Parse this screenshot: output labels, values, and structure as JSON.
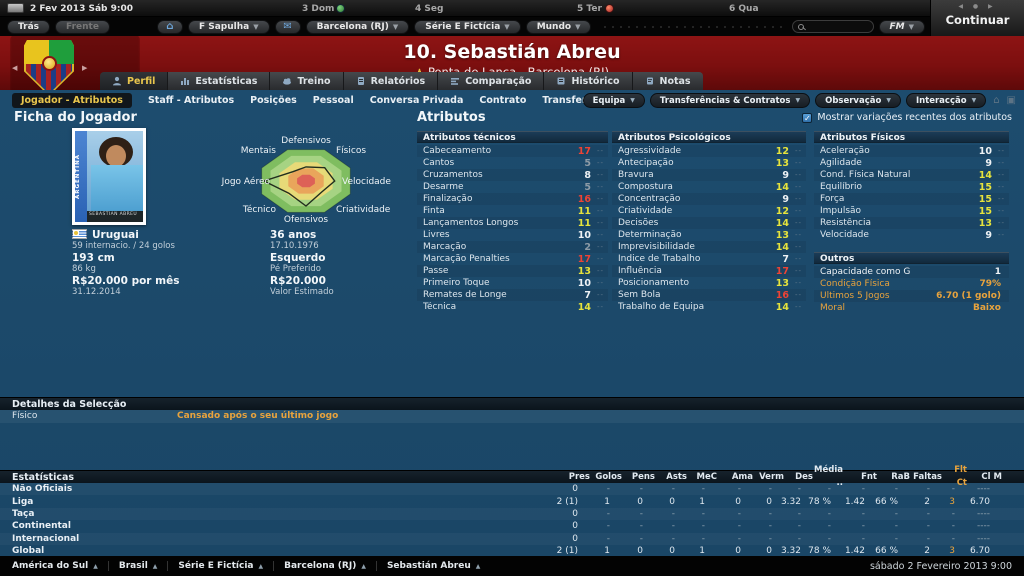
{
  "colors": {
    "attr_red": "#ee4334",
    "attr_yellow": "#e6e33c",
    "attr_white": "#eef2f5",
    "attr_gray": "#8d9ba6",
    "accent_orange": "#e8a33d",
    "tab_selected": "#e9c64d"
  },
  "top": {
    "date": "2 Fev 2013 Sáb 9:00",
    "days": [
      "3 Dom",
      "4 Seg",
      "5 Ter",
      "6 Qua"
    ],
    "continue_label": "Continuar"
  },
  "toolbar": {
    "back": "Trás",
    "forward": "Frente",
    "manager": "F Sapulha",
    "club": "Barcelona (RJ)",
    "competition": "Série E Fictícia",
    "world": "Mundo",
    "fm": "FM"
  },
  "header": {
    "title": "10. Sebastián Abreu",
    "subtitle": "Ponta de Lança - Barcelona (RJ)"
  },
  "tabs": [
    {
      "label": "Perfil",
      "selected": true,
      "icon": "person-icon"
    },
    {
      "label": "Estatísticas",
      "selected": false,
      "icon": "stats-icon"
    },
    {
      "label": "Treino",
      "selected": false,
      "icon": "training-icon"
    },
    {
      "label": "Relatórios",
      "selected": false,
      "icon": "report-icon"
    },
    {
      "label": "Comparação",
      "selected": false,
      "icon": "comparison-icon"
    },
    {
      "label": "Histórico",
      "selected": false,
      "icon": "history-icon"
    },
    {
      "label": "Notas",
      "selected": false,
      "icon": "notes-icon"
    }
  ],
  "subtabs": [
    {
      "label": "Jogador - Atributos",
      "selected": true
    },
    {
      "label": "Staff - Atributos",
      "selected": false
    },
    {
      "label": "Posições",
      "selected": false
    },
    {
      "label": "Pessoal",
      "selected": false
    },
    {
      "label": "Conversa Privada",
      "selected": false
    },
    {
      "label": "Contrato",
      "selected": false
    },
    {
      "label": "Transferência",
      "selected": false
    }
  ],
  "action_menus": [
    "Equipa",
    "Transferências & Contratos",
    "Observação",
    "Interacção"
  ],
  "show_variations": "Mostrar variações recentes dos atributos",
  "player": {
    "section_title": "Ficha do Jogador",
    "card_country": "ARGENTINA",
    "card_name": "SEBASTIAN ABREU",
    "nationality": "Uruguai",
    "caps": "59 internacio. / 24 golos",
    "height": "193 cm",
    "weight": "86 kg",
    "wage": "R$20.000 por mês",
    "contract_end": "31.12.2014",
    "age": "36 anos",
    "birth": "17.10.1976",
    "foot": "Esquerdo",
    "foot_label": "Pé Preferido",
    "value": "R$20.000",
    "value_label": "Valor Estimado"
  },
  "radar": {
    "labels": [
      "Defensivos",
      "Físicos",
      "Velocidade",
      "Criatividade",
      "Ofensivos",
      "Técnico",
      "Jogo Aéreo",
      "Mentais"
    ],
    "values": [
      0.45,
      0.6,
      0.65,
      0.5,
      0.8,
      0.55,
      0.95,
      0.42
    ]
  },
  "attributes": {
    "section_title": "Atributos",
    "groups": [
      {
        "title": "Atributos técnicos",
        "rows": [
          [
            "Cabeceamento",
            17
          ],
          [
            "Cantos",
            5
          ],
          [
            "Cruzamentos",
            8
          ],
          [
            "Desarme",
            5
          ],
          [
            "Finalização",
            16
          ],
          [
            "Finta",
            11
          ],
          [
            "Lançamentos Longos",
            11
          ],
          [
            "Livres",
            10
          ],
          [
            "Marcação",
            2
          ],
          [
            "Marcação Penalties",
            17
          ],
          [
            "Passe",
            13
          ],
          [
            "Primeiro Toque",
            10
          ],
          [
            "Remates de Longe",
            7
          ],
          [
            "Técnica",
            14
          ]
        ]
      },
      {
        "title": "Atributos Psicológicos",
        "rows": [
          [
            "Agressividade",
            12
          ],
          [
            "Antecipação",
            13
          ],
          [
            "Bravura",
            9
          ],
          [
            "Compostura",
            14
          ],
          [
            "Concentração",
            9
          ],
          [
            "Criatividade",
            12
          ],
          [
            "Decisões",
            14
          ],
          [
            "Determinação",
            13
          ],
          [
            "Imprevisibilidade",
            14
          ],
          [
            "Índice de Trabalho",
            7
          ],
          [
            "Influência",
            17
          ],
          [
            "Posicionamento",
            13
          ],
          [
            "Sem Bola",
            16
          ],
          [
            "Trabalho de Equipa",
            14
          ]
        ]
      },
      {
        "title": "Atributos Físicos",
        "rows": [
          [
            "Aceleração",
            10
          ],
          [
            "Agilidade",
            9
          ],
          [
            "Cond. Física Natural",
            14
          ],
          [
            "Equilíbrio",
            15
          ],
          [
            "Força",
            15
          ],
          [
            "Impulsão",
            15
          ],
          [
            "Resistência",
            13
          ],
          [
            "Velocidade",
            9
          ]
        ]
      }
    ],
    "others": {
      "title": "Outros",
      "rows": [
        {
          "label": "Capacidade como GR",
          "value": "1",
          "tone": "white"
        },
        {
          "label": "Condição Física",
          "value": "79%",
          "tone": "orange"
        },
        {
          "label": "Últimos 5 Jogos",
          "value": "6.70 (1 golo)",
          "tone": "orange"
        },
        {
          "label": "Moral",
          "value": "Baixo",
          "tone": "orange"
        }
      ]
    }
  },
  "selection": {
    "title": "Detalhes da Selecção",
    "rows": [
      {
        "label": "Físico",
        "value": "Cansado após o seu último jogo"
      }
    ]
  },
  "stats": {
    "title": "Estatísticas",
    "columns": [
      "Pres",
      "Golos",
      "Pens",
      "Asts",
      "MeC",
      "Ama",
      "Verm",
      "Des",
      "Média ..",
      "Fnt",
      "RaB",
      "Faltas",
      "Flt Ct",
      "Cl M"
    ],
    "highlight_column_index": 12,
    "rows": [
      {
        "label": "Não Oficiais",
        "values": [
          "0",
          "-",
          "-",
          "-",
          "-",
          "-",
          "-",
          "-",
          "-",
          "-",
          "-",
          "-",
          "-",
          "----"
        ]
      },
      {
        "label": "Liga",
        "values": [
          "2 (1)",
          "1",
          "0",
          "0",
          "1",
          "0",
          "0",
          "3.32",
          "78 %",
          "1.42",
          "66 %",
          "2",
          "3",
          "6.70"
        ]
      },
      {
        "label": "Taça",
        "values": [
          "0",
          "-",
          "-",
          "-",
          "-",
          "-",
          "-",
          "-",
          "-",
          "-",
          "-",
          "-",
          "-",
          "----"
        ]
      },
      {
        "label": "Continental",
        "values": [
          "0",
          "-",
          "-",
          "-",
          "-",
          "-",
          "-",
          "-",
          "-",
          "-",
          "-",
          "-",
          "-",
          "----"
        ]
      },
      {
        "label": "Internacional",
        "values": [
          "0",
          "-",
          "-",
          "-",
          "-",
          "-",
          "-",
          "-",
          "-",
          "-",
          "-",
          "-",
          "-",
          "----"
        ]
      },
      {
        "label": "Global",
        "values": [
          "2 (1)",
          "1",
          "0",
          "0",
          "1",
          "0",
          "0",
          "3.32",
          "78 %",
          "1.42",
          "66 %",
          "2",
          "3",
          "6.70"
        ]
      }
    ]
  },
  "bottom": {
    "breadcrumbs": [
      "América do Sul",
      "Brasil",
      "Série E Fictícia",
      "Barcelona (RJ)",
      "Sebastián Abreu"
    ],
    "datetime": "sábado 2 Fevereiro 2013 9:00"
  }
}
